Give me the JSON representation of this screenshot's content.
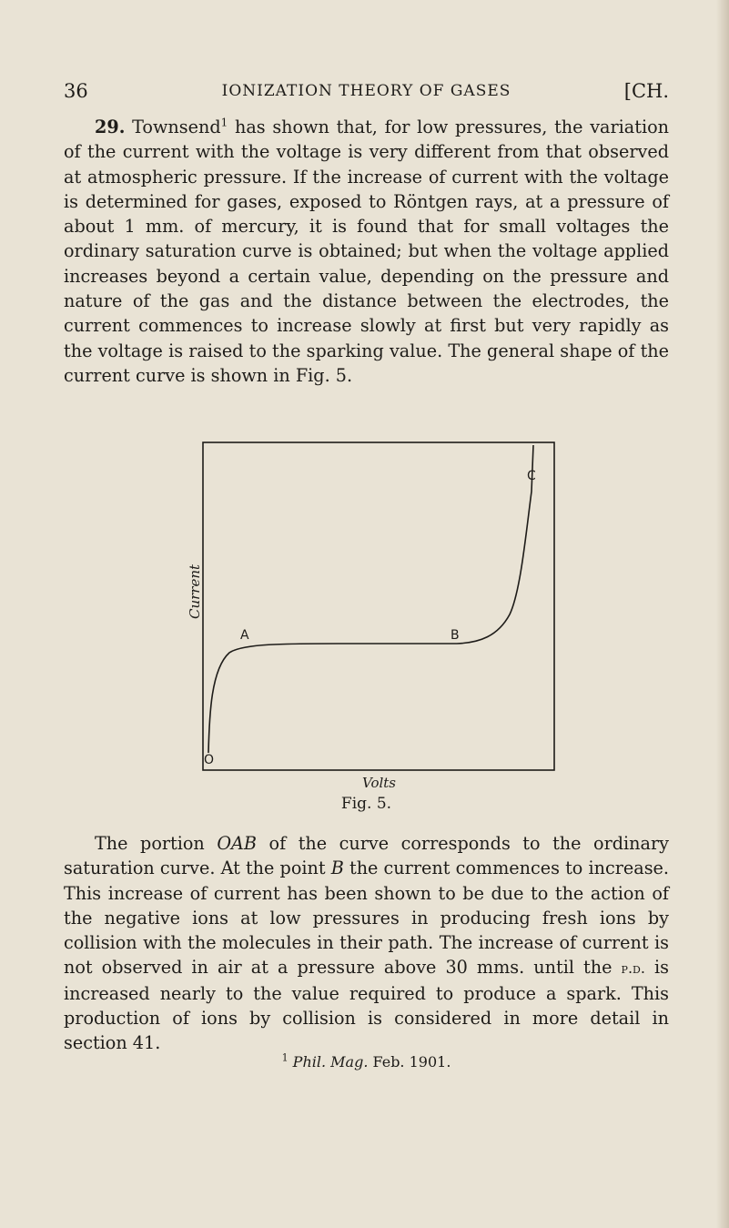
{
  "header": {
    "page_number": "36",
    "running_title": "IONIZATION THEORY OF GASES",
    "right": "[CH."
  },
  "para1": {
    "section_number": "29.",
    "text_a": "Townsend",
    "footnote_marker": "1",
    "text_b": " has shown that, for low pressures, the variation of the current with the voltage is very different from that observed at atmospheric pressure. If the increase of current with the voltage is determined for gases, exposed to Röntgen rays, at a pressure of about 1 mm. of mercury, it is found that for small voltages the ordinary saturation curve is obtained; but when the voltage applied increases beyond a certain value, depending on the pressure and nature of the gas and the distance between the electrodes, the current commences to increase slowly at first but very rapidly as the voltage is raised to the sparking value. The general shape of the current curve is shown in Fig. 5."
  },
  "figure": {
    "ylabel": "Current",
    "xlabel": "Volts",
    "caption": "Fig. 5.",
    "point_o": "O",
    "point_a": "A",
    "point_b": "B",
    "point_c": "C"
  },
  "para2": {
    "t1": "The portion ",
    "oab": "OAB",
    "t2": " of the curve corresponds to the ordinary saturation curve. At the point ",
    "b": "B",
    "t3": " the current commences to increase. This increase of current has been shown to be due to the action of the negative ions at low pressures in producing fresh ions by collision with the molecules in their path. The increase of current is not observed in air at a pressure above 30 mms. until the ",
    "pd": "p.d.",
    "t4": " is increased nearly to the value required to produce a spark. This production of ions by collision is considered in more detail in section 41."
  },
  "footnote": {
    "marker": "1",
    "journal": "Phil. Mag.",
    "date": " Feb. 1901."
  }
}
